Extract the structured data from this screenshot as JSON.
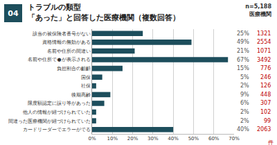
{
  "chart_data": {
    "type": "bar",
    "orientation": "horizontal",
    "badge": "04",
    "title": "トラブルの類型",
    "subtitle": "「あった」と回答した医療機関（複数回答）",
    "annotations": [
      "n=5,188",
      "医療機関",
      "件"
    ],
    "categories": [
      "該当の被保険者番号がない",
      "資格情報の無効がある",
      "名前や住所の間違い",
      "名前や住所で●が表示される",
      "負担割合の齟齬",
      "国保",
      "社保",
      "後期高齢",
      "限度額認定に誤り等があった",
      "他人の情報が紐づけられていた",
      "間違った医療機関が紐づけられていた",
      "カードリーダーでエラーがでる"
    ],
    "values": [
      25,
      49,
      21,
      67,
      15,
      5,
      2,
      9,
      6,
      2,
      2,
      40
    ],
    "value_labels": [
      "25%",
      "49%",
      "21%",
      "67%",
      "15%",
      "5%",
      "2%",
      "9%",
      "6%",
      "2%",
      "2%",
      "40%"
    ],
    "counts": [
      1321,
      2554,
      1071,
      3492,
      776,
      246,
      126,
      448,
      307,
      102,
      99,
      2063
    ],
    "color": "#1d4e5c",
    "xlim": [
      0,
      70
    ],
    "xticks": [
      {
        "value": 0,
        "label": "0%"
      },
      {
        "value": 10,
        "label": "10%"
      },
      {
        "value": 20,
        "label": "20%"
      },
      {
        "value": 30,
        "label": "30%"
      },
      {
        "value": 40,
        "label": "40%"
      },
      {
        "value": 50,
        "label": "50%"
      },
      {
        "value": 60,
        "label": "60%"
      },
      {
        "value": 70,
        "label": "70%"
      }
    ],
    "grid": true,
    "data_labels": true
  }
}
